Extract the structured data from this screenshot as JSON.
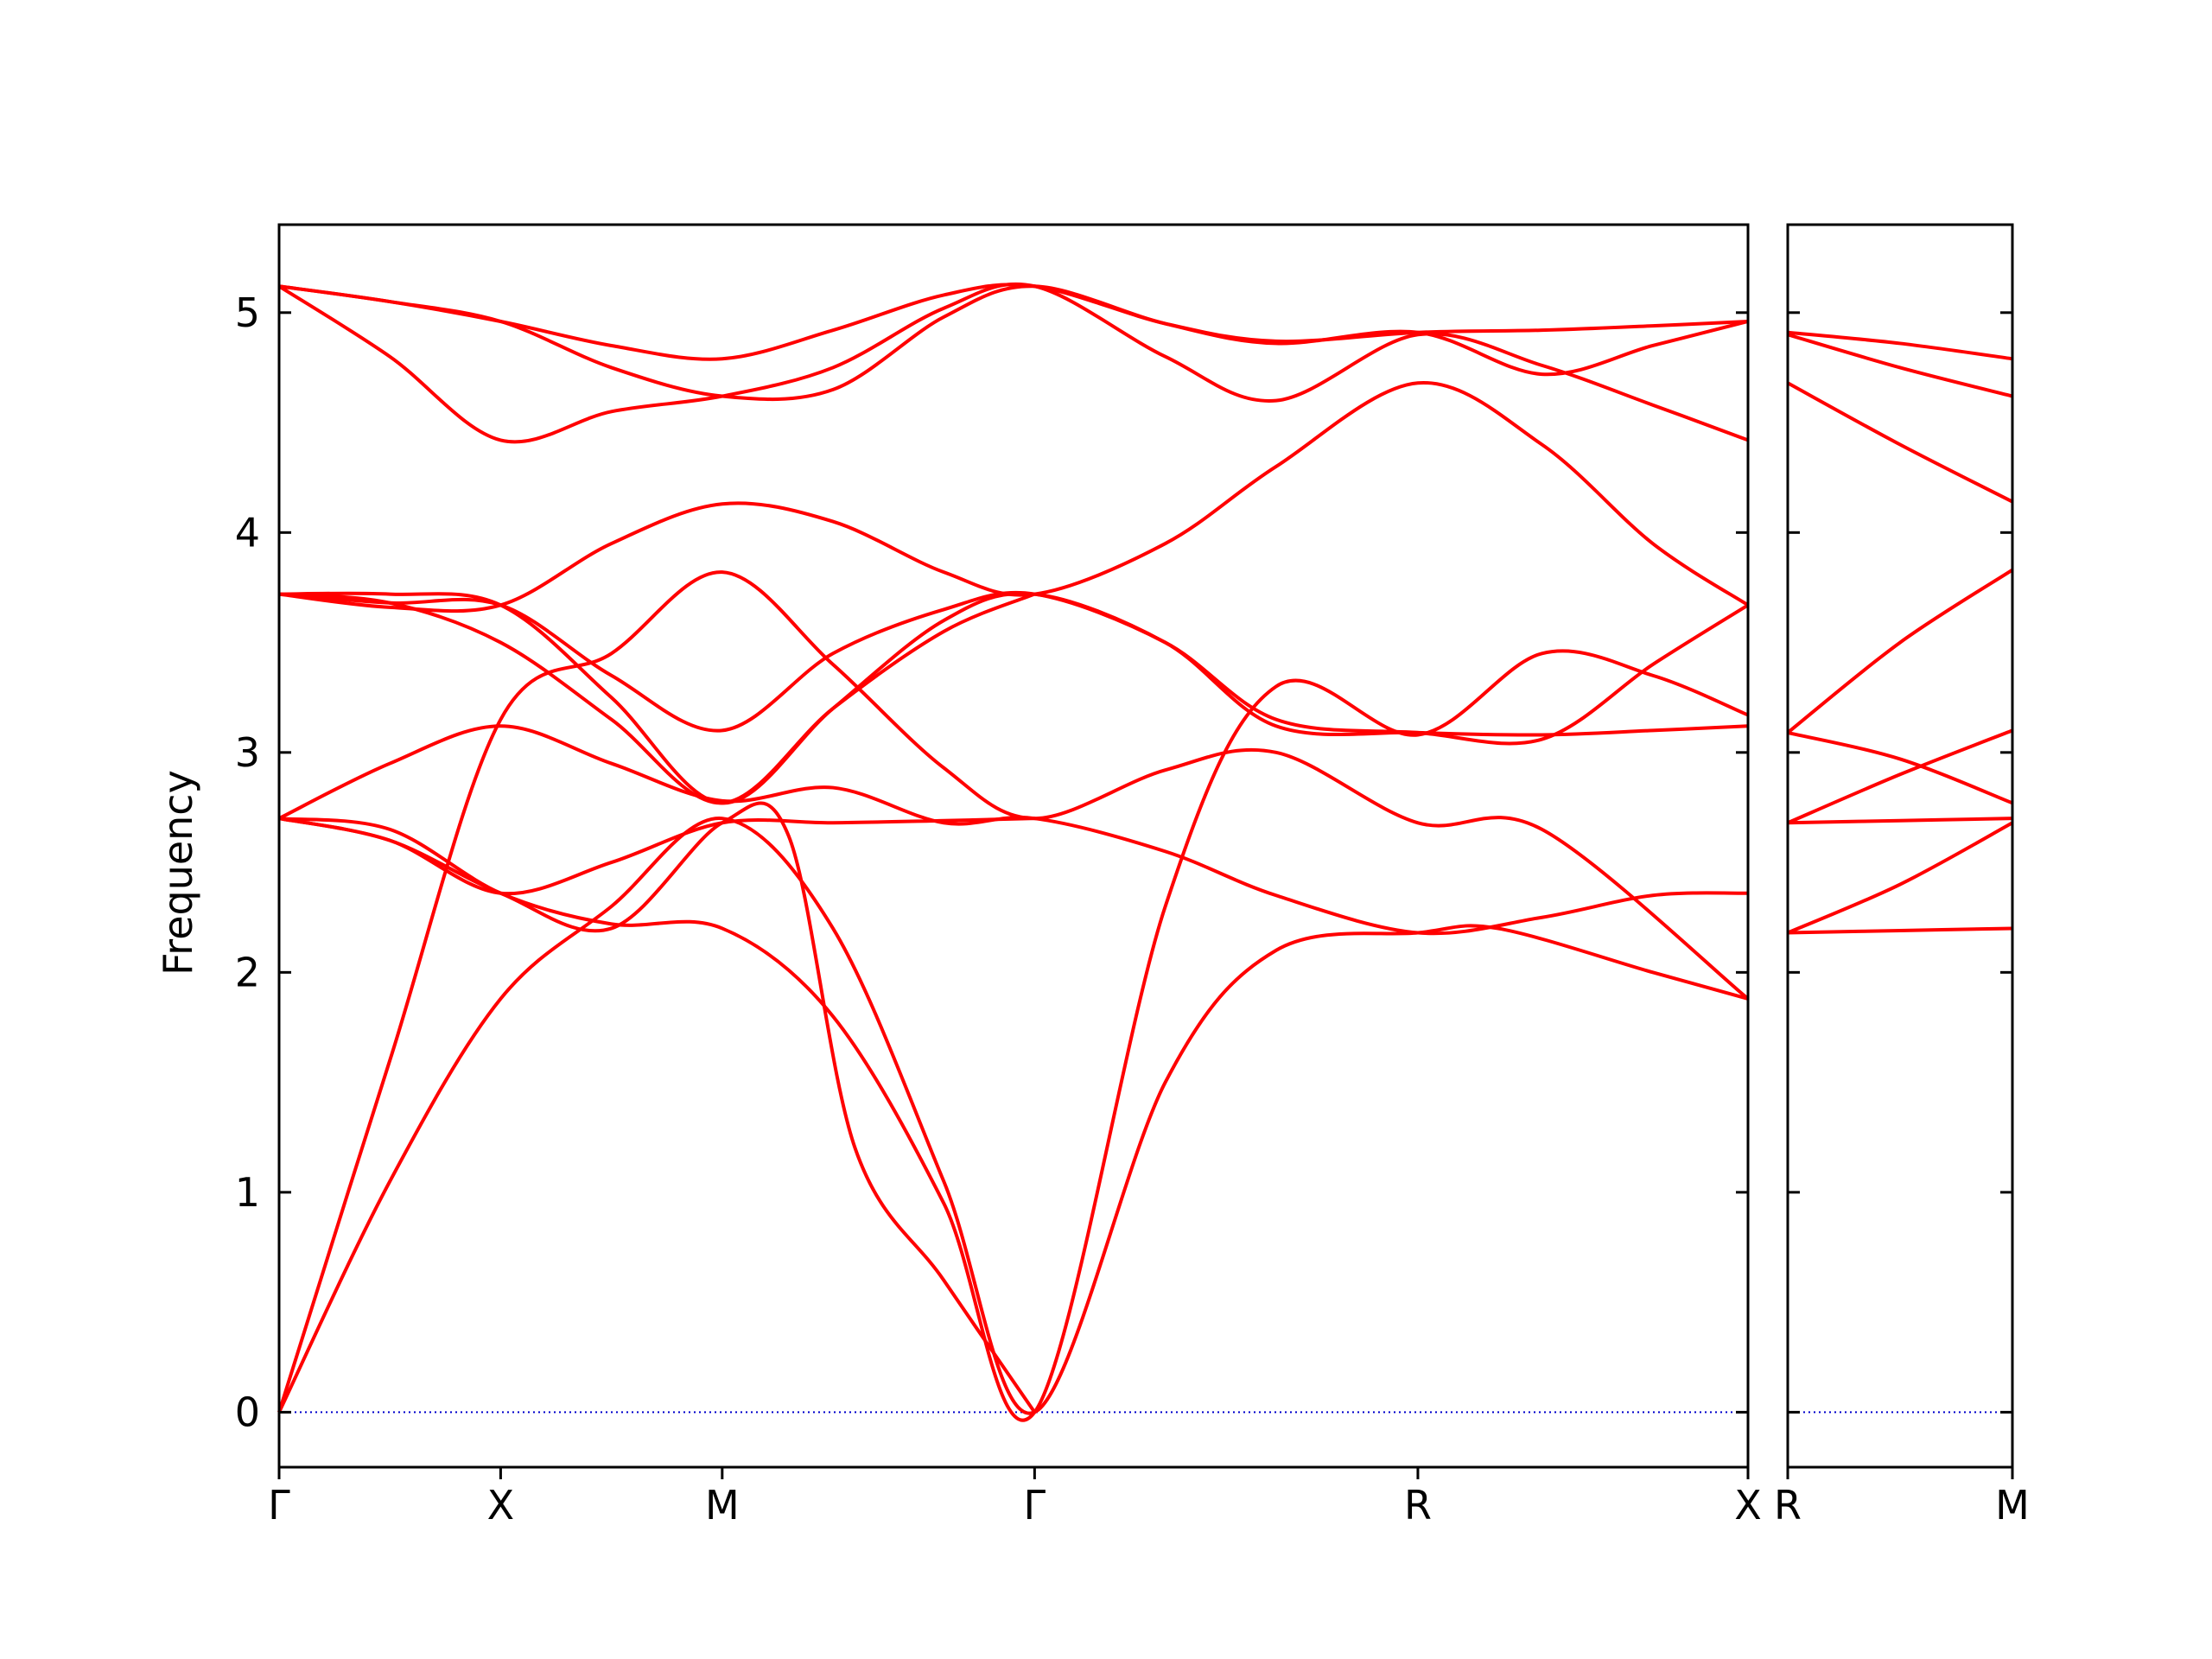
{
  "chart_data": {
    "type": "line",
    "ylabel": "Frequency",
    "ylim": [
      -0.25,
      5.4
    ],
    "yticks": [
      0,
      1,
      2,
      3,
      4,
      5
    ],
    "line_color": "#ff0000",
    "zero_line_color": "#0000cc",
    "grid": false,
    "panels": [
      {
        "xlim": [
          0,
          6.63
        ],
        "ticks": [
          {
            "x": 0,
            "label": "Γ"
          },
          {
            "x": 1,
            "label": "X"
          },
          {
            "x": 2,
            "label": "M"
          },
          {
            "x": 3.41,
            "label": "Γ"
          },
          {
            "x": 5.14,
            "label": "R"
          },
          {
            "x": 6.63,
            "label": "X"
          }
        ],
        "bands": [
          {
            "x": [
              0,
              0.5,
              1,
              1.5,
              2,
              2.5,
              3,
              3.41,
              4,
              4.5,
              5.14,
              5.7,
              6.63
            ],
            "y": [
              0,
              1.6,
              3.15,
              3.45,
              3.82,
              3.4,
              2.93,
              2.7,
              2.92,
              3.0,
              2.68,
              2.65,
              1.88
            ]
          },
          {
            "x": [
              0,
              0.5,
              1,
              1.5,
              2,
              2.5,
              3,
              3.41,
              4,
              4.5,
              5.14,
              5.5,
              6.2,
              6.63
            ],
            "y": [
              0,
              1.05,
              1.88,
              2.3,
              2.7,
              2.2,
              1.05,
              0,
              1.5,
              2.1,
              2.18,
              2.2,
              2.0,
              1.88
            ]
          },
          {
            "x": [
              0,
              0.5,
              1,
              1.5,
              2,
              2.5,
              3,
              3.41,
              4,
              4.5,
              5.14,
              5.7,
              6.2,
              6.63
            ],
            "y": [
              2.7,
              2.65,
              2.36,
              2.22,
              2.2,
              1.8,
              0.95,
              0,
              2.3,
              3.3,
              3.08,
              3.45,
              3.35,
              3.17
            ]
          },
          {
            "x": [
              0,
              0.5,
              1,
              1.5,
              2,
              2.3,
              2.6,
              3,
              3.41
            ],
            "y": [
              2.7,
              2.6,
              2.36,
              2.2,
              2.68,
              2.62,
              1.2,
              0.6,
              0
            ]
          },
          {
            "x": [
              0,
              0.5,
              1,
              1.5,
              2,
              2.5,
              3,
              3.41,
              4,
              4.5,
              5.14,
              5.7,
              6.2,
              6.63
            ],
            "y": [
              2.7,
              2.95,
              3.12,
              2.95,
              2.78,
              2.84,
              2.68,
              2.7,
              2.55,
              2.35,
              2.18,
              2.25,
              2.35,
              2.36
            ]
          },
          {
            "x": [
              0,
              0.5,
              1,
              1.5,
              2,
              2.5,
              3,
              3.41
            ],
            "y": [
              2.7,
              2.6,
              2.36,
              2.5,
              2.68,
              2.68,
              2.69,
              2.7
            ]
          },
          {
            "x": [
              0,
              0.5,
              1,
              1.5,
              2,
              2.5,
              3,
              3.41,
              4,
              4.5,
              5.14,
              5.7,
              6.2,
              6.63
            ],
            "y": [
              3.72,
              3.72,
              3.67,
              3.25,
              2.77,
              3.2,
              3.6,
              3.72,
              3.5,
              3.12,
              3.09,
              3.08,
              3.1,
              3.12
            ]
          },
          {
            "x": [
              0,
              0.5,
              1,
              1.5,
              2,
              2.5,
              3,
              3.41
            ],
            "y": [
              3.72,
              3.68,
              3.5,
              3.15,
              2.77,
              3.2,
              3.55,
              3.72
            ]
          },
          {
            "x": [
              0,
              0.5,
              1,
              1.5,
              2,
              2.5,
              3,
              3.41,
              4,
              4.5,
              5.14,
              5.7,
              6.2,
              6.63
            ],
            "y": [
              3.72,
              3.68,
              3.67,
              3.35,
              3.1,
              3.45,
              3.65,
              3.72,
              3.5,
              3.15,
              3.09,
              3.06,
              3.4,
              3.67
            ]
          },
          {
            "x": [
              0,
              0.5,
              1,
              1.5,
              2,
              2.5,
              3,
              3.41,
              4,
              4.5,
              5.14,
              5.7,
              6.2,
              6.63
            ],
            "y": [
              3.72,
              3.66,
              3.67,
              3.95,
              4.13,
              4.05,
              3.82,
              3.72,
              3.95,
              4.3,
              4.68,
              4.4,
              3.95,
              3.67
            ]
          },
          {
            "x": [
              0,
              0.5,
              1,
              1.5,
              2,
              2.5,
              3,
              3.41,
              4,
              4.5,
              5.14,
              5.7,
              6.2,
              6.63
            ],
            "y": [
              5.12,
              4.8,
              4.42,
              4.55,
              4.62,
              4.75,
              5.02,
              5.12,
              4.8,
              4.6,
              4.9,
              4.76,
              4.58,
              4.42
            ]
          },
          {
            "x": [
              0,
              0.5,
              1,
              1.5,
              2,
              2.5,
              3,
              3.41,
              4,
              4.5,
              5.14,
              5.7,
              6.2,
              6.63
            ],
            "y": [
              5.12,
              5.05,
              4.96,
              4.75,
              4.62,
              4.65,
              4.98,
              5.12,
              4.95,
              4.86,
              4.91,
              4.72,
              4.85,
              4.96
            ]
          },
          {
            "x": [
              0,
              0.5,
              1,
              1.5,
              2,
              2.5,
              3,
              3.41,
              4,
              4.5,
              5.14,
              5.7,
              6.2,
              6.63
            ],
            "y": [
              5.12,
              5.05,
              4.96,
              4.85,
              4.79,
              4.92,
              5.08,
              5.12,
              4.95,
              4.87,
              4.91,
              4.92,
              4.94,
              4.96
            ]
          }
        ]
      },
      {
        "xlim": [
          0,
          1
        ],
        "ticks": [
          {
            "x": 0,
            "label": "R"
          },
          {
            "x": 1,
            "label": "M"
          }
        ],
        "bands": [
          {
            "x": [
              0,
              0.5,
              1
            ],
            "y": [
              2.18,
              2.19,
              2.2
            ]
          },
          {
            "x": [
              0,
              0.5,
              1
            ],
            "y": [
              2.18,
              2.4,
              2.68
            ]
          },
          {
            "x": [
              0,
              0.5,
              1
            ],
            "y": [
              2.68,
              2.69,
              2.7
            ]
          },
          {
            "x": [
              0,
              0.5,
              1
            ],
            "y": [
              2.68,
              2.9,
              3.1
            ]
          },
          {
            "x": [
              0,
              0.5,
              1
            ],
            "y": [
              3.09,
              2.97,
              2.77
            ]
          },
          {
            "x": [
              0,
              0.5,
              1
            ],
            "y": [
              3.09,
              3.5,
              3.83
            ]
          },
          {
            "x": [
              0,
              0.5,
              1
            ],
            "y": [
              4.68,
              4.4,
              4.14
            ]
          },
          {
            "x": [
              0,
              0.5,
              1
            ],
            "y": [
              4.9,
              4.75,
              4.62
            ]
          },
          {
            "x": [
              0,
              0.5,
              1
            ],
            "y": [
              4.91,
              4.86,
              4.79
            ]
          }
        ]
      }
    ]
  }
}
